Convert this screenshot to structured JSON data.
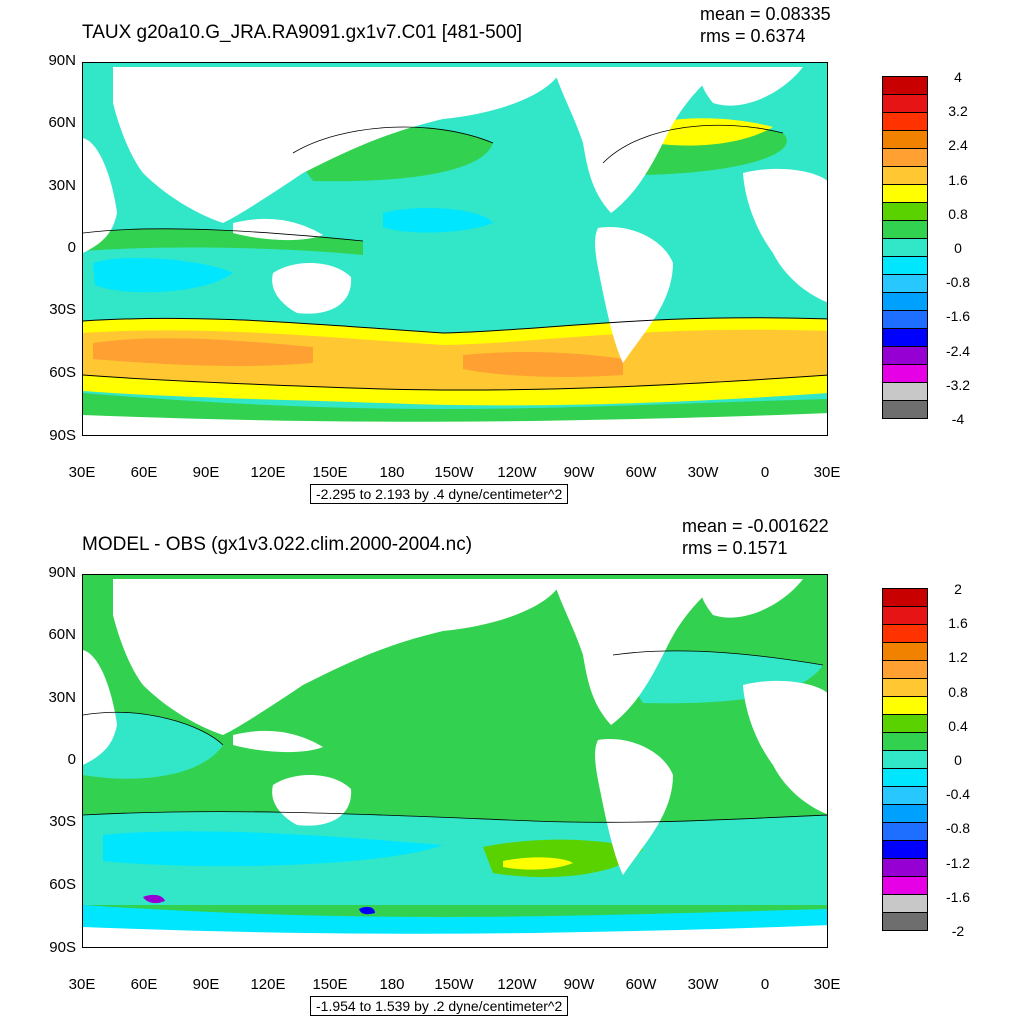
{
  "panels": [
    {
      "title": "TAUX g20a10.G_JRA.RA9091.gx1v7.C01 [481-500]",
      "mean": "mean = 0.08335",
      "rms": "rms = 0.6374",
      "range_info": "-2.295 to 2.193 by .4 dyne/centimeter^2",
      "colorbar_labels": [
        "4",
        "3.2",
        "2.4",
        "1.6",
        "0.8",
        "0",
        "-0.8",
        "-1.6",
        "-2.4",
        "-3.2",
        "-4"
      ]
    },
    {
      "title": "MODEL - OBS (gx1v3.022.clim.2000-2004.nc)",
      "mean": "mean = -0.001622",
      "rms": "rms = 0.1571",
      "range_info": "-1.954 to 1.539 by .2 dyne/centimeter^2",
      "colorbar_labels": [
        "2",
        "1.6",
        "1.2",
        "0.8",
        "0.4",
        "0",
        "-0.4",
        "-0.8",
        "-1.2",
        "-1.6",
        "-2"
      ]
    }
  ],
  "lat_labels": [
    "90N",
    "60N",
    "30N",
    "0",
    "30S",
    "60S",
    "90S"
  ],
  "lon_labels": [
    "30E",
    "60E",
    "90E",
    "120E",
    "150E",
    "180",
    "150W",
    "120W",
    "90W",
    "60W",
    "30W",
    "0",
    "30E"
  ],
  "colorbar_colors": [
    "#c80000",
    "#e61414",
    "#ff3200",
    "#f08200",
    "#ffa032",
    "#ffc832",
    "#ffff00",
    "#5ad200",
    "#32d250",
    "#32e6c8",
    "#00e6ff",
    "#28c8ff",
    "#00a0ff",
    "#1e6eff",
    "#0000ff",
    "#9600d2",
    "#e600e6",
    "#c8c8c8",
    "#6e6e6e"
  ],
  "map_colors": {
    "land": "#ffffff",
    "green": "#32d250",
    "cyan": "#32e6c8",
    "lightblue": "#00e6ff",
    "yellow": "#ffff00",
    "orange": "#ffc832",
    "darkorange": "#ffa032",
    "lime": "#5ad200",
    "blue": "#00a0ff",
    "purple": "#9600d2"
  }
}
